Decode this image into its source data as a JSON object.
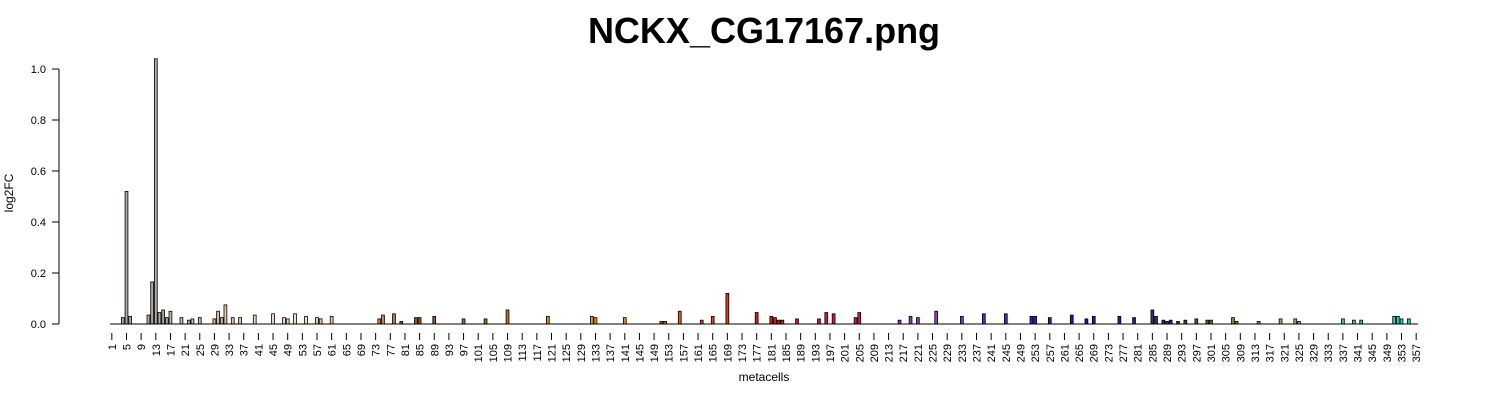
{
  "chart_data": {
    "type": "bar",
    "title": "NCKX_CG17167.png",
    "xlabel": "metacells",
    "ylabel": "log2FC",
    "ylim": [
      0,
      1.0
    ],
    "yticks": [
      0.0,
      0.2,
      0.4,
      0.6,
      0.8,
      1.0
    ],
    "ytick_labels": [
      "0.0",
      "0.2",
      "0.4",
      "0.6",
      "0.8",
      "1.0"
    ],
    "n_bars": 357,
    "xtick_values": [
      1,
      5,
      9,
      13,
      17,
      21,
      25,
      29,
      33,
      37,
      41,
      45,
      49,
      53,
      57,
      61,
      65,
      69,
      73,
      77,
      81,
      85,
      89,
      93,
      97,
      101,
      105,
      109,
      113,
      117,
      121,
      125,
      129,
      133,
      137,
      141,
      145,
      149,
      153,
      157,
      161,
      165,
      169,
      173,
      177,
      181,
      185,
      189,
      193,
      197,
      201,
      205,
      209,
      213,
      217,
      221,
      225,
      229,
      233,
      237,
      241,
      245,
      249,
      253,
      257,
      261,
      265,
      269,
      273,
      277,
      281,
      285,
      289,
      293,
      297,
      301,
      305,
      309,
      313,
      317,
      321,
      325,
      329,
      333,
      337,
      341,
      345,
      349,
      353,
      357
    ],
    "xtick_labels": [
      "1",
      "5",
      "9",
      "13",
      "17",
      "21",
      "25",
      "29",
      "33",
      "37",
      "41",
      "45",
      "49",
      "53",
      "57",
      "61",
      "65",
      "69",
      "73",
      "77",
      "81",
      "85",
      "89",
      "93",
      "97",
      "101",
      "105",
      "109",
      "113",
      "117",
      "121",
      "125",
      "129",
      "133",
      "137",
      "141",
      "145",
      "149",
      "153",
      "157",
      "161",
      "165",
      "169",
      "173",
      "177",
      "181",
      "185",
      "189",
      "193",
      "197",
      "201",
      "205",
      "209",
      "213",
      "217",
      "221",
      "225",
      "229",
      "233",
      "237",
      "241",
      "245",
      "249",
      "253",
      "257",
      "261",
      "265",
      "269",
      "273",
      "277",
      "281",
      "285",
      "289",
      "293",
      "297",
      "301",
      "305",
      "309",
      "313",
      "317",
      "321",
      "325",
      "329",
      "333",
      "337",
      "341",
      "345",
      "349",
      "353",
      "357"
    ],
    "bars": [
      {
        "x": 4,
        "y": 0.025,
        "color": "#a9a9a9"
      },
      {
        "x": 5,
        "y": 0.52,
        "color": "#b0aba6"
      },
      {
        "x": 6,
        "y": 0.03,
        "color": "#a9a9a9"
      },
      {
        "x": 11,
        "y": 0.035,
        "color": "#b8b0a8"
      },
      {
        "x": 12,
        "y": 0.165,
        "color": "#b0aba6"
      },
      {
        "x": 13,
        "y": 1.04,
        "color": "#b0aba6"
      },
      {
        "x": 14,
        "y": 0.045,
        "color": "#b5afa8"
      },
      {
        "x": 15,
        "y": 0.055,
        "color": "#a8a29c"
      },
      {
        "x": 16,
        "y": 0.025,
        "color": "#a9a9a9"
      },
      {
        "x": 17,
        "y": 0.05,
        "color": "#c0b8b0"
      },
      {
        "x": 20,
        "y": 0.025,
        "color": "#c8b8a8"
      },
      {
        "x": 22,
        "y": 0.015,
        "color": "#c8b8a8"
      },
      {
        "x": 23,
        "y": 0.02,
        "color": "#c8b8a8"
      },
      {
        "x": 25,
        "y": 0.025,
        "color": "#c8b8a8"
      },
      {
        "x": 29,
        "y": 0.02,
        "color": "#d8c0a8"
      },
      {
        "x": 30,
        "y": 0.05,
        "color": "#d8c0a8"
      },
      {
        "x": 31,
        "y": 0.025,
        "color": "#d8c0a8"
      },
      {
        "x": 32,
        "y": 0.075,
        "color": "#e0c8a8"
      },
      {
        "x": 34,
        "y": 0.025,
        "color": "#e0c8a8"
      },
      {
        "x": 36,
        "y": 0.025,
        "color": "#e0c8a8"
      },
      {
        "x": 40,
        "y": 0.035,
        "color": "#f0d8b8"
      },
      {
        "x": 45,
        "y": 0.04,
        "color": "#f0dcc0"
      },
      {
        "x": 48,
        "y": 0.025,
        "color": "#f0dcc0"
      },
      {
        "x": 49,
        "y": 0.02,
        "color": "#f0dcc0"
      },
      {
        "x": 51,
        "y": 0.04,
        "color": "#f0dcc0"
      },
      {
        "x": 54,
        "y": 0.03,
        "color": "#f0dcc0"
      },
      {
        "x": 57,
        "y": 0.025,
        "color": "#e8c8a0"
      },
      {
        "x": 58,
        "y": 0.02,
        "color": "#e8c8a0"
      },
      {
        "x": 61,
        "y": 0.03,
        "color": "#e8c8a0"
      },
      {
        "x": 74,
        "y": 0.02,
        "color": "#c8884a"
      },
      {
        "x": 75,
        "y": 0.035,
        "color": "#c8884a"
      },
      {
        "x": 78,
        "y": 0.04,
        "color": "#b07a50"
      },
      {
        "x": 80,
        "y": 0.01,
        "color": "#8b5a2b"
      },
      {
        "x": 84,
        "y": 0.025,
        "color": "#8b5a2b"
      },
      {
        "x": 85,
        "y": 0.025,
        "color": "#8b5a2b"
      },
      {
        "x": 89,
        "y": 0.03,
        "color": "#8b5a2b"
      },
      {
        "x": 97,
        "y": 0.02,
        "color": "#a06a30"
      },
      {
        "x": 103,
        "y": 0.02,
        "color": "#a06a30"
      },
      {
        "x": 109,
        "y": 0.055,
        "color": "#b8742a"
      },
      {
        "x": 120,
        "y": 0.03,
        "color": "#d89030"
      },
      {
        "x": 132,
        "y": 0.03,
        "color": "#e8a020"
      },
      {
        "x": 133,
        "y": 0.025,
        "color": "#e8a020"
      },
      {
        "x": 141,
        "y": 0.025,
        "color": "#e09020"
      },
      {
        "x": 151,
        "y": 0.01,
        "color": "#c0602a"
      },
      {
        "x": 152,
        "y": 0.01,
        "color": "#c0602a"
      },
      {
        "x": 156,
        "y": 0.05,
        "color": "#e8541c"
      },
      {
        "x": 162,
        "y": 0.015,
        "color": "#e04020"
      },
      {
        "x": 165,
        "y": 0.03,
        "color": "#e04020"
      },
      {
        "x": 169,
        "y": 0.12,
        "color": "#e03a1c"
      },
      {
        "x": 177,
        "y": 0.045,
        "color": "#dc2020"
      },
      {
        "x": 181,
        "y": 0.03,
        "color": "#d41a1a"
      },
      {
        "x": 182,
        "y": 0.025,
        "color": "#d41a1a"
      },
      {
        "x": 183,
        "y": 0.015,
        "color": "#d41a1a"
      },
      {
        "x": 184,
        "y": 0.015,
        "color": "#d41a1a"
      },
      {
        "x": 188,
        "y": 0.02,
        "color": "#d01a2a"
      },
      {
        "x": 194,
        "y": 0.02,
        "color": "#d01a3a"
      },
      {
        "x": 196,
        "y": 0.045,
        "color": "#cc1a44"
      },
      {
        "x": 198,
        "y": 0.04,
        "color": "#cc1a50"
      },
      {
        "x": 204,
        "y": 0.025,
        "color": "#c81a60"
      },
      {
        "x": 205,
        "y": 0.045,
        "color": "#c81a60"
      },
      {
        "x": 216,
        "y": 0.015,
        "color": "#a030c0"
      },
      {
        "x": 219,
        "y": 0.03,
        "color": "#a030c0"
      },
      {
        "x": 221,
        "y": 0.025,
        "color": "#a030c0"
      },
      {
        "x": 226,
        "y": 0.05,
        "color": "#9040d0"
      },
      {
        "x": 233,
        "y": 0.03,
        "color": "#7040d0"
      },
      {
        "x": 239,
        "y": 0.04,
        "color": "#5030d0"
      },
      {
        "x": 245,
        "y": 0.04,
        "color": "#4030d0"
      },
      {
        "x": 252,
        "y": 0.03,
        "color": "#3020c8"
      },
      {
        "x": 253,
        "y": 0.03,
        "color": "#3020c8"
      },
      {
        "x": 257,
        "y": 0.025,
        "color": "#2020c0"
      },
      {
        "x": 263,
        "y": 0.035,
        "color": "#1818c0"
      },
      {
        "x": 267,
        "y": 0.02,
        "color": "#1818c0"
      },
      {
        "x": 269,
        "y": 0.03,
        "color": "#1818c0"
      },
      {
        "x": 276,
        "y": 0.03,
        "color": "#2020a0"
      },
      {
        "x": 280,
        "y": 0.025,
        "color": "#2020a0"
      },
      {
        "x": 285,
        "y": 0.055,
        "color": "#303070"
      },
      {
        "x": 286,
        "y": 0.03,
        "color": "#303070"
      },
      {
        "x": 288,
        "y": 0.015,
        "color": "#303070"
      },
      {
        "x": 289,
        "y": 0.01,
        "color": "#303070"
      },
      {
        "x": 290,
        "y": 0.015,
        "color": "#303070"
      },
      {
        "x": 292,
        "y": 0.01,
        "color": "#404040"
      },
      {
        "x": 294,
        "y": 0.015,
        "color": "#504030"
      },
      {
        "x": 297,
        "y": 0.02,
        "color": "#605030"
      },
      {
        "x": 300,
        "y": 0.015,
        "color": "#706030"
      },
      {
        "x": 301,
        "y": 0.015,
        "color": "#706030"
      },
      {
        "x": 307,
        "y": 0.025,
        "color": "#a08030"
      },
      {
        "x": 308,
        "y": 0.01,
        "color": "#a08030"
      },
      {
        "x": 314,
        "y": 0.01,
        "color": "#b09040"
      },
      {
        "x": 320,
        "y": 0.02,
        "color": "#90b070"
      },
      {
        "x": 324,
        "y": 0.02,
        "color": "#90b070"
      },
      {
        "x": 325,
        "y": 0.01,
        "color": "#90b070"
      },
      {
        "x": 337,
        "y": 0.02,
        "color": "#50c0a0"
      },
      {
        "x": 340,
        "y": 0.015,
        "color": "#40c8a8"
      },
      {
        "x": 342,
        "y": 0.015,
        "color": "#40c8a8"
      },
      {
        "x": 351,
        "y": 0.03,
        "color": "#20d0c0"
      },
      {
        "x": 352,
        "y": 0.03,
        "color": "#20d0c0"
      },
      {
        "x": 353,
        "y": 0.02,
        "color": "#20d0c8"
      },
      {
        "x": 355,
        "y": 0.02,
        "color": "#20d0c8"
      }
    ]
  }
}
